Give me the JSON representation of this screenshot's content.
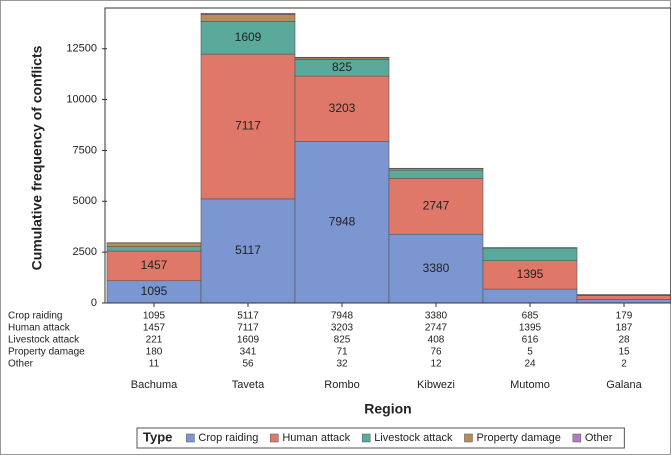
{
  "chart_data": {
    "type": "stacked_bar",
    "y_label": "Cumulative frequency of conflicts",
    "x_label": "Region",
    "legend_title": "Type",
    "categories": [
      "Bachuma",
      "Taveta",
      "Rombo",
      "Kibwezi",
      "Mutomo",
      "Galana"
    ],
    "series": [
      {
        "name": "Crop raiding",
        "color": "#7b96d1",
        "values": [
          1095,
          5117,
          7948,
          3380,
          685,
          179
        ]
      },
      {
        "name": "Human attack",
        "color": "#e0786a",
        "values": [
          1457,
          7117,
          3203,
          2747,
          1395,
          187
        ]
      },
      {
        "name": "Livestock attack",
        "color": "#5aa99b",
        "values": [
          221,
          1609,
          825,
          408,
          616,
          28
        ]
      },
      {
        "name": "Property damage",
        "color": "#b98c5a",
        "values": [
          180,
          341,
          71,
          76,
          5,
          15
        ]
      },
      {
        "name": "Other",
        "color": "#b07cc6",
        "values": [
          11,
          56,
          32,
          12,
          24,
          2
        ]
      }
    ],
    "ylim": [
      0,
      14500
    ],
    "yticks": [
      0,
      2500,
      5000,
      7500,
      10000,
      12500
    ],
    "grid": false
  }
}
